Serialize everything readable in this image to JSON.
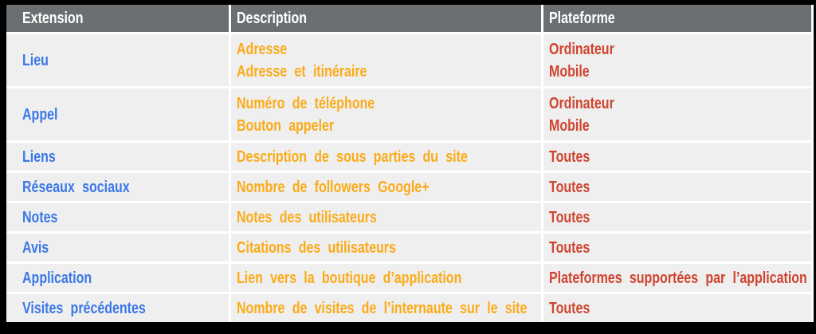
{
  "colors": {
    "frame_bg": "#000000",
    "header_bg": "#6b6f72",
    "header_text": "#ffffff",
    "row_bg": "#efefef",
    "separator": "#ffffff",
    "extension_text": "#3b78e7",
    "description_text": "#fbab18",
    "platform_text": "#d0442f"
  },
  "table": {
    "columns": [
      {
        "key": "extension",
        "label": "Extension"
      },
      {
        "key": "description",
        "label": "Description"
      },
      {
        "key": "platform",
        "label": "Plateforme"
      }
    ],
    "rows": [
      {
        "extension": "Lieu",
        "description": [
          "Adresse",
          "Adresse et itinéraire"
        ],
        "platform": [
          "Ordinateur",
          "Mobile"
        ]
      },
      {
        "extension": "Appel",
        "description": [
          "Numéro de téléphone",
          "Bouton appeler"
        ],
        "platform": [
          "Ordinateur",
          "Mobile"
        ]
      },
      {
        "extension": "Liens",
        "description": [
          "Description de sous parties du site"
        ],
        "platform": [
          "Toutes"
        ]
      },
      {
        "extension": "Réseaux sociaux",
        "description": [
          "Nombre de followers Google+"
        ],
        "platform": [
          "Toutes"
        ]
      },
      {
        "extension": "Notes",
        "description": [
          "Notes des utilisateurs"
        ],
        "platform": [
          "Toutes"
        ]
      },
      {
        "extension": "Avis",
        "description": [
          "Citations des utilisateurs"
        ],
        "platform": [
          "Toutes"
        ]
      },
      {
        "extension": "Application",
        "description": [
          "Lien vers la boutique d’application"
        ],
        "platform": [
          "Plateformes supportées par l’application"
        ]
      },
      {
        "extension": "Visites précédentes",
        "description": [
          "Nombre de visites de l’internaute sur le site"
        ],
        "platform": [
          "Toutes"
        ]
      }
    ]
  },
  "chart_data": {
    "type": "table",
    "title": "",
    "columns": [
      "Extension",
      "Description",
      "Plateforme"
    ],
    "rows": [
      [
        "Lieu",
        "Adresse\nAdresse et itinéraire",
        "Ordinateur\nMobile"
      ],
      [
        "Appel",
        "Numéro de téléphone\nBouton appeler",
        "Ordinateur\nMobile"
      ],
      [
        "Liens",
        "Description de sous parties du site",
        "Toutes"
      ],
      [
        "Réseaux sociaux",
        "Nombre de followers Google+",
        "Toutes"
      ],
      [
        "Notes",
        "Notes des utilisateurs",
        "Toutes"
      ],
      [
        "Avis",
        "Citations des utilisateurs",
        "Toutes"
      ],
      [
        "Application",
        "Lien vers la boutique d’application",
        "Plateformes supportées par l’application"
      ],
      [
        "Visites précédentes",
        "Nombre de visites de l’internaute sur le site",
        "Toutes"
      ]
    ],
    "layout": {
      "header_row": true,
      "gridlines": "white 3px",
      "zebra": false
    }
  }
}
